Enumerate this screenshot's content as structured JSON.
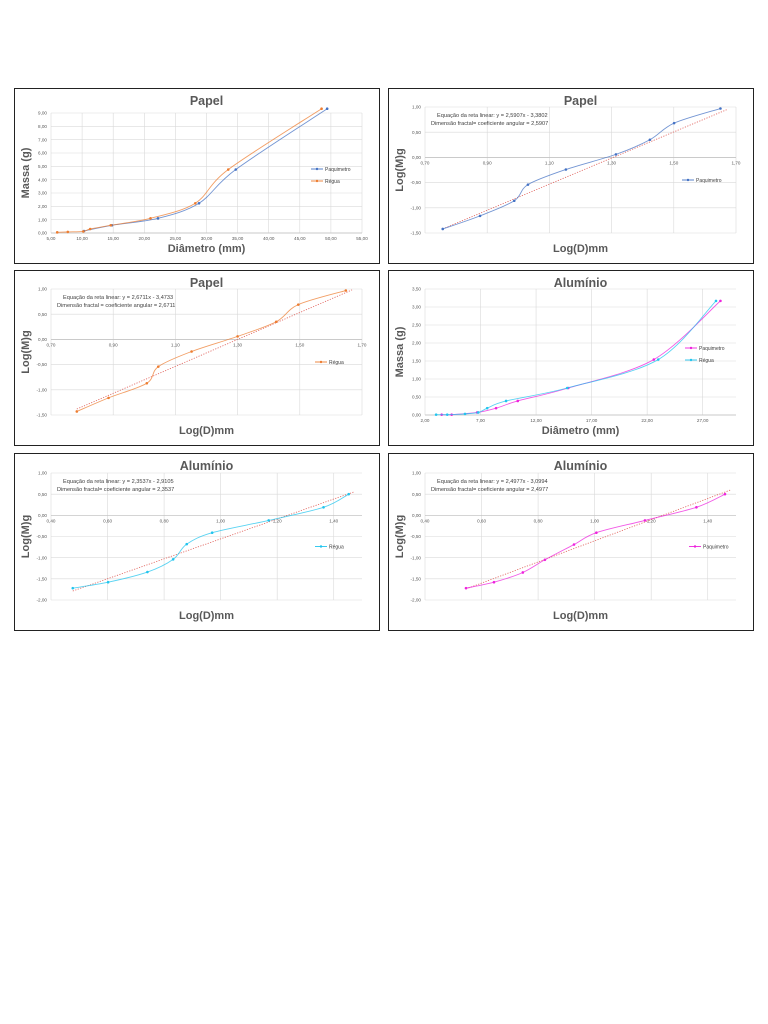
{
  "chart_data": [
    {
      "type": "line",
      "title": "Papel",
      "xlabel": "Diâmetro (mm)",
      "ylabel": "Massa (g)",
      "xlim": [
        5,
        55
      ],
      "xticks": [
        5,
        10,
        15,
        20,
        25,
        30,
        35,
        40,
        45,
        50,
        55
      ],
      "ylim": [
        0,
        9
      ],
      "yticks": [
        0,
        1,
        2,
        3,
        4,
        5,
        6,
        7,
        8,
        9
      ],
      "grid": true,
      "legend": "right",
      "series": [
        {
          "name": "Paquimetro",
          "color": "#4472c4",
          "x": [
            10.3,
            14.8,
            22.2,
            28.8,
            34.7,
            49.4
          ],
          "y": [
            0.15,
            0.58,
            1.1,
            2.23,
            4.76,
            9.32
          ]
        },
        {
          "name": "Régua",
          "color": "#ed7d31",
          "x": [
            6.0,
            7.7,
            10.2,
            11.3,
            14.6,
            21.0,
            28.2,
            33.5,
            48.5
          ],
          "y": [
            0.05,
            0.08,
            0.12,
            0.3,
            0.58,
            1.1,
            2.23,
            4.76,
            9.32
          ]
        }
      ]
    },
    {
      "type": "line",
      "title": "Papel",
      "xlabel": "Log(D)mm",
      "ylabel": "Log(M)g",
      "xlim": [
        0.7,
        1.7
      ],
      "xticks": [
        0.7,
        0.9,
        1.1,
        1.3,
        1.5,
        1.7
      ],
      "ylim": [
        -1.5,
        1.0
      ],
      "yticks": [
        -1.5,
        -1.0,
        -0.5,
        0,
        0.5,
        1.0
      ],
      "grid": true,
      "legend": "right",
      "equation": "Equação da reta linear: y = 2,5907x - 3,3802",
      "fractal": "Dimensão fractal= coeficiente angular = 2,5907",
      "trendline": {
        "slope": 2.5907,
        "intercept": -3.3802
      },
      "series": [
        {
          "name": "Paquimetro",
          "color": "#4472c4",
          "x": [
            0.757,
            0.877,
            0.987,
            1.031,
            1.153,
            1.314,
            1.423,
            1.501,
            1.65
          ],
          "y": [
            -1.42,
            -1.16,
            -0.86,
            -0.54,
            -0.24,
            0.06,
            0.35,
            0.68,
            0.97
          ]
        }
      ]
    },
    {
      "type": "line",
      "title": "Papel",
      "xlabel": "Log(D)mm",
      "ylabel": "Log(M)g",
      "xlim": [
        0.7,
        1.7
      ],
      "xticks": [
        0.7,
        0.9,
        1.1,
        1.3,
        1.5,
        1.7
      ],
      "ylim": [
        -1.5,
        1.0
      ],
      "yticks": [
        -1.5,
        -1.0,
        -0.5,
        0,
        0.5,
        1.0
      ],
      "grid": true,
      "legend": "right",
      "equation": "Equação da reta linear: y = 2,6711x - 3,4733",
      "fractal": "Dimensão fractal = coeficiente angular = 2,6711",
      "trendline": {
        "slope": 2.6711,
        "intercept": -3.4733
      },
      "series": [
        {
          "name": "Régua",
          "color": "#ed7d31",
          "x": [
            0.783,
            0.885,
            1.008,
            1.045,
            1.152,
            1.3,
            1.424,
            1.495,
            1.648
          ],
          "y": [
            -1.43,
            -1.16,
            -0.87,
            -0.54,
            -0.24,
            0.06,
            0.35,
            0.69,
            0.97
          ]
        }
      ]
    },
    {
      "type": "line",
      "title": "Alumínio",
      "xlabel": "Diâmetro (mm)",
      "ylabel": "Massa (g)",
      "xlim": [
        2,
        30
      ],
      "xticks": [
        2,
        7,
        12,
        17,
        22,
        27
      ],
      "ylim": [
        0,
        3.5
      ],
      "yticks": [
        0,
        0.5,
        1.0,
        1.5,
        2.0,
        2.5,
        3.0,
        3.5
      ],
      "grid": true,
      "legend": "right",
      "series": [
        {
          "name": "Paquimetro",
          "color": "#ee22dd",
          "x": [
            3.5,
            4.4,
            6.7,
            8.4,
            10.35,
            14.9,
            22.6,
            28.6
          ],
          "y": [
            0.01,
            0.01,
            0.07,
            0.19,
            0.39,
            0.75,
            1.54,
            3.17
          ]
        },
        {
          "name": "Régua",
          "color": "#22c4ee",
          "x": [
            3.0,
            4.0,
            5.6,
            6.8,
            7.6,
            9.3,
            14.8,
            23.0,
            28.2
          ],
          "y": [
            0.01,
            0.01,
            0.03,
            0.07,
            0.19,
            0.39,
            0.75,
            1.54,
            3.17
          ]
        }
      ]
    },
    {
      "type": "line",
      "title": "Alumínio",
      "xlabel": "Log(D)mm",
      "ylabel": "Log(M)g",
      "xlim": [
        0.4,
        1.5
      ],
      "xticks": [
        0.4,
        0.6,
        0.8,
        1.0,
        1.2,
        1.4
      ],
      "ylim": [
        -2.0,
        1.0
      ],
      "yticks": [
        -2.0,
        -1.5,
        -1.0,
        -0.5,
        0,
        0.5,
        1.0
      ],
      "grid": true,
      "legend": "right",
      "equation": "Equação da reta linear: y = 2,3537x - 2,9105",
      "fractal": "Dimensão fractal= coeficiente angular = 2,3537",
      "trendline": {
        "slope": 2.3537,
        "intercept": -2.9105
      },
      "series": [
        {
          "name": "Régua",
          "color": "#22c4ee",
          "x": [
            0.477,
            0.602,
            0.741,
            0.832,
            0.88,
            0.97,
            1.17,
            1.364,
            1.453
          ],
          "y": [
            -1.72,
            -1.58,
            -1.34,
            -1.04,
            -0.68,
            -0.41,
            -0.12,
            0.19,
            0.5
          ]
        }
      ]
    },
    {
      "type": "line",
      "title": "Alumínio",
      "xlabel": "Log(D)mm",
      "ylabel": "Log(M)g",
      "xlim": [
        0.4,
        1.5
      ],
      "xticks": [
        0.4,
        0.6,
        0.8,
        1.0,
        1.2,
        1.4
      ],
      "ylim": [
        -2.0,
        1.0
      ],
      "yticks": [
        -2.0,
        -1.5,
        -1.0,
        -0.5,
        0,
        0.5,
        1.0
      ],
      "grid": true,
      "legend": "right",
      "equation": "Equação da reta linear: y = 2,4977x - 3,0994",
      "fractal": "Dimensão fractal= coeficiente angular = 2,4977",
      "trendline": {
        "slope": 2.4977,
        "intercept": -3.0994
      },
      "series": [
        {
          "name": "Paquimetro",
          "color": "#ee22dd",
          "x": [
            0.545,
            0.644,
            0.746,
            0.824,
            0.927,
            1.006,
            1.178,
            1.36,
            1.461
          ],
          "y": [
            -1.72,
            -1.58,
            -1.35,
            -1.05,
            -0.69,
            -0.41,
            -0.12,
            0.19,
            0.5
          ]
        }
      ]
    }
  ]
}
